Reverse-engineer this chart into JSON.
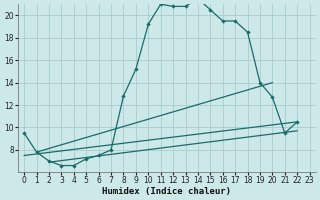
{
  "xlabel": "Humidex (Indice chaleur)",
  "bg_color": "#cce8e8",
  "grid_color": "#aacccc",
  "line_color": "#1a6b6b",
  "xlim": [
    -0.5,
    23.5
  ],
  "ylim": [
    6,
    21
  ],
  "yticks": [
    8,
    10,
    12,
    14,
    16,
    18,
    20
  ],
  "xticks": [
    0,
    1,
    2,
    3,
    4,
    5,
    6,
    7,
    8,
    9,
    10,
    11,
    12,
    13,
    14,
    15,
    16,
    17,
    18,
    19,
    20,
    21,
    22,
    23
  ],
  "curve_x": [
    0,
    1,
    2,
    3,
    4,
    5,
    6,
    7,
    8,
    9,
    10,
    11,
    12,
    13,
    14,
    15,
    16,
    17,
    18,
    19,
    20,
    21,
    22
  ],
  "curve_y": [
    9.5,
    7.8,
    7.0,
    6.6,
    6.6,
    7.2,
    7.5,
    8.0,
    12.8,
    15.2,
    19.2,
    21.0,
    20.8,
    20.8,
    21.5,
    20.5,
    19.5,
    19.5,
    18.5,
    14.0,
    12.7,
    9.5,
    10.5
  ],
  "line1_x": [
    0,
    22
  ],
  "line1_y": [
    7.5,
    10.5
  ],
  "line2_x": [
    2,
    22
  ],
  "line2_y": [
    6.9,
    9.7
  ],
  "line3_x": [
    1,
    20
  ],
  "line3_y": [
    7.8,
    14.0
  ]
}
